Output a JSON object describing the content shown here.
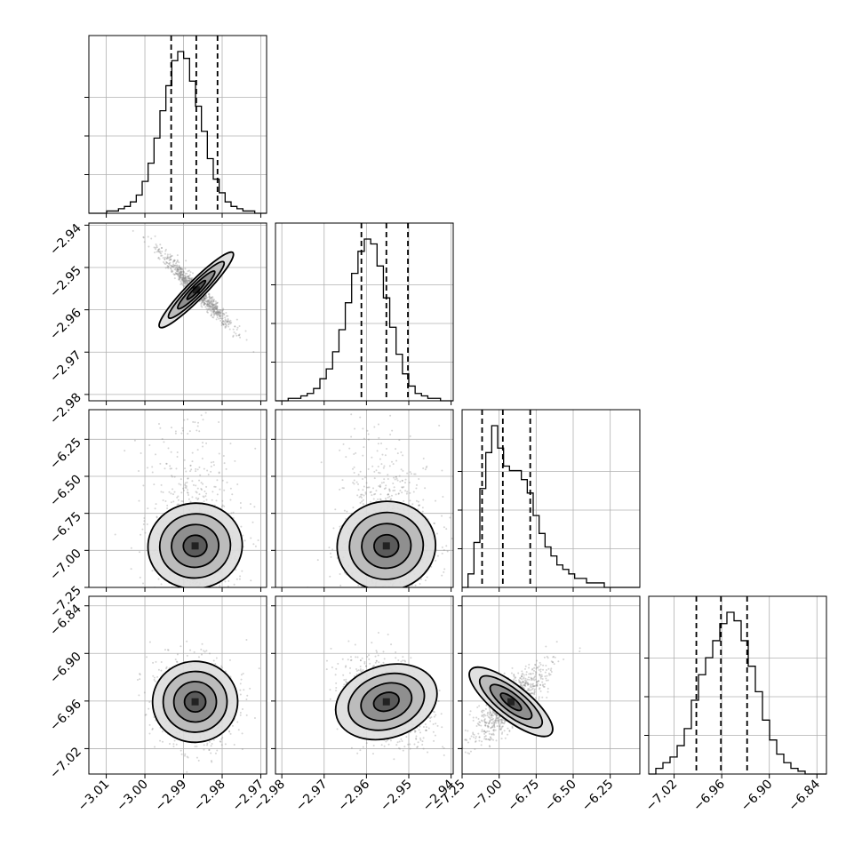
{
  "chart_data": {
    "type": "corner",
    "parameters": [
      {
        "range": [
          -3.0145,
          -2.9685
        ],
        "ticks": [
          -3.01,
          -3.0,
          -2.99,
          -2.98,
          -2.97
        ],
        "tick_labels": [
          "−3.01",
          "−3.00",
          "−2.99",
          "−2.98",
          "−2.97"
        ],
        "quantiles": [
          -2.9932,
          -2.9867,
          -2.9812
        ]
      },
      {
        "range": [
          -2.9815,
          -2.9395
        ],
        "ticks": [
          -2.98,
          -2.97,
          -2.96,
          -2.95,
          -2.94
        ],
        "tick_labels": [
          "−2.98",
          "−2.97",
          "−2.96",
          "−2.95",
          "−2.94"
        ],
        "quantiles": [
          -2.9612,
          -2.9553,
          -2.9502
        ]
      },
      {
        "range": [
          -7.25,
          -6.05
        ],
        "ticks": [
          -7.25,
          -7.0,
          -6.75,
          -6.5,
          -6.25
        ],
        "tick_labels": [
          "−7.25",
          "−7.00",
          "−6.75",
          "−6.50",
          "−6.25"
        ],
        "quantiles": [
          -7.115,
          -6.975,
          -6.79
        ]
      },
      {
        "range": [
          -7.052,
          -6.828
        ],
        "ticks": [
          -7.02,
          -6.96,
          -6.9,
          -6.84
        ],
        "tick_labels": [
          "−7.02",
          "−6.96",
          "−6.90",
          "−6.84"
        ],
        "quantiles": [
          -6.992,
          -6.961,
          -6.928
        ]
      }
    ],
    "histograms": [
      {
        "param": 0,
        "edges_range": [
          -3.0145,
          -2.9685
        ],
        "counts": [
          0,
          0,
          0,
          1,
          1,
          2,
          3,
          5,
          8,
          14,
          22,
          33,
          45,
          56,
          67,
          71,
          68,
          58,
          47,
          36,
          24,
          15,
          9,
          5,
          3,
          2,
          1,
          1,
          0,
          0
        ]
      },
      {
        "param": 1,
        "edges_range": [
          -2.9815,
          -2.9395
        ],
        "counts": [
          0,
          0,
          1,
          1,
          2,
          3,
          5,
          9,
          13,
          20,
          29,
          40,
          52,
          61,
          66,
          64,
          55,
          42,
          30,
          19,
          11,
          6,
          3,
          2,
          1,
          1,
          0,
          0
        ]
      },
      {
        "param": 2,
        "edges_range": [
          -7.25,
          -6.05
        ],
        "counts": [
          0,
          3,
          10,
          22,
          30,
          36,
          31,
          27,
          26,
          26,
          24,
          21,
          16,
          12,
          9,
          7,
          5,
          4,
          3,
          2,
          2,
          1,
          1,
          1,
          0,
          0,
          0,
          0,
          0,
          0
        ]
      },
      {
        "param": 3,
        "edges_range": [
          -7.052,
          -6.828
        ],
        "counts": [
          0,
          2,
          4,
          6,
          10,
          16,
          26,
          35,
          41,
          47,
          53,
          57,
          54,
          47,
          38,
          29,
          19,
          12,
          7,
          4,
          2,
          1,
          0,
          0,
          0
        ]
      }
    ],
    "pairs": [
      {
        "x": 0,
        "y": 1,
        "center": [
          -2.9867,
          -2.9553
        ],
        "sd": [
          0.0047,
          0.0045
        ],
        "corr": 0.97
      },
      {
        "x": 0,
        "y": 2,
        "center": [
          -2.987,
          -6.97
        ],
        "sd": [
          0.0055,
          0.16
        ],
        "corr": 0.1
      },
      {
        "x": 1,
        "y": 2,
        "center": [
          -2.9553,
          -6.97
        ],
        "sd": [
          0.0055,
          0.16
        ],
        "corr": 0.1
      },
      {
        "x": 0,
        "y": 3,
        "center": [
          -2.987,
          -6.961
        ],
        "sd": [
          0.0052,
          0.027
        ],
        "corr": 0.05
      },
      {
        "x": 1,
        "y": 3,
        "center": [
          -2.9553,
          -6.961
        ],
        "sd": [
          0.0055,
          0.027
        ],
        "corr": 0.35
      },
      {
        "x": 2,
        "y": 3,
        "center": [
          -6.92,
          -6.961
        ],
        "sd": [
          0.13,
          0.024
        ],
        "corr": -0.8
      }
    ],
    "contour_sigmas": [
      0.5,
      1.0,
      1.5,
      2.0
    ],
    "grid": true,
    "colors": {
      "line": "#000000",
      "grid": "#b0b0b0",
      "points": "#888888",
      "fill_dark": "#222222"
    }
  }
}
